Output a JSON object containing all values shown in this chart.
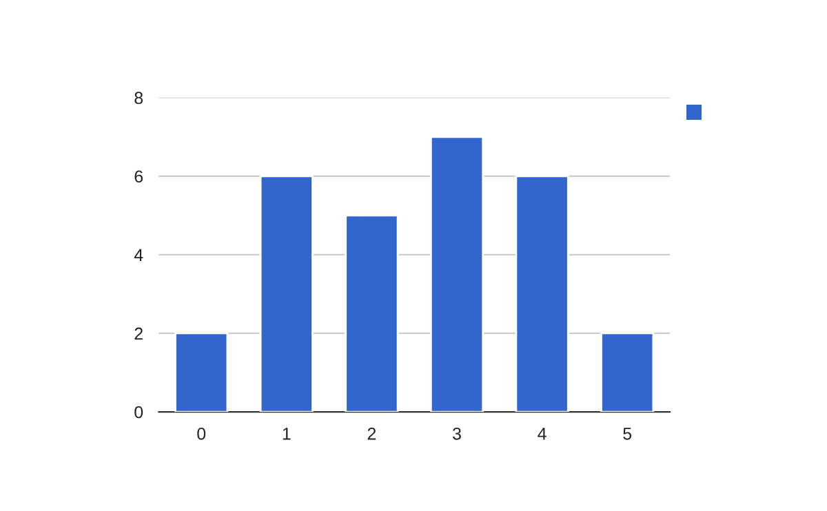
{
  "chart_data": {
    "type": "bar",
    "categories": [
      "0",
      "1",
      "2",
      "3",
      "4",
      "5"
    ],
    "series": [
      {
        "color": "#3366cc",
        "values": [
          2,
          6,
          5,
          7,
          6,
          2
        ]
      }
    ],
    "ylim": [
      0,
      8
    ],
    "yticks": [
      0,
      2,
      4,
      6,
      8
    ],
    "grid": "y"
  }
}
